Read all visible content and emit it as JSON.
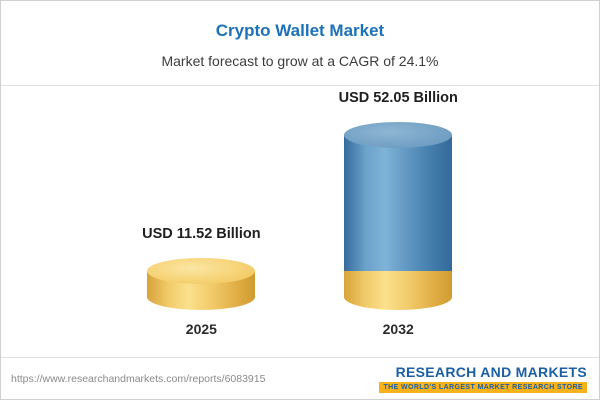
{
  "header": {
    "title": "Crypto Wallet Market",
    "subtitle": "Market forecast to grow at a CAGR of 24.1%"
  },
  "chart_data": {
    "type": "bar",
    "title": "Crypto Wallet Market",
    "subtitle": "Market forecast to grow at a CAGR of 24.1%",
    "categories": [
      "2025",
      "2032"
    ],
    "values": [
      11.52,
      52.05
    ],
    "value_labels": [
      "USD 11.52 Billion",
      "USD 52.05 Billion"
    ],
    "unit": "USD Billion",
    "cagr": "24.1%",
    "ylim": [
      0,
      55
    ],
    "legend": "none",
    "grid": false,
    "colors": {
      "bar_2025": "#f2cd6e",
      "bar_2032": "#6298c3",
      "bar_2032_base": "#f2cd6e",
      "title_accent": "#1d71b8"
    }
  },
  "footer": {
    "url": "https://www.researchandmarkets.com/reports/6083915",
    "logo_line1": "RESEARCH AND MARKETS",
    "logo_line2": "THE WORLD'S LARGEST MARKET RESEARCH STORE"
  }
}
